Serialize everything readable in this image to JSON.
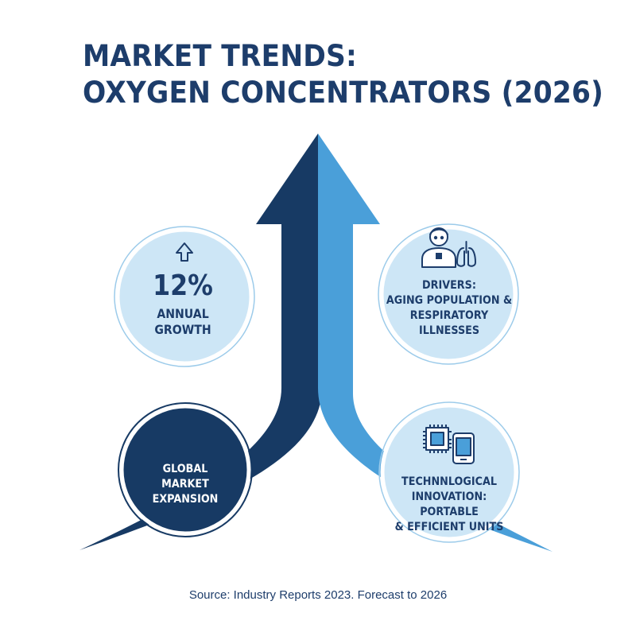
{
  "title": {
    "line1": "MARKET TRENDS:",
    "line2": "OXYGEN CONCENTRATORS (2026)"
  },
  "growth": {
    "value": "12%",
    "label_line1": "ANNUAL",
    "label_line2": "GROWTH",
    "icon": "arrow-up-outline-icon"
  },
  "drivers": {
    "line1": "DRIVERS:",
    "line2": "AGING POPULATION &",
    "line3": "RESPIRATORY ILLNESSES",
    "icon": "person-lungs-icon"
  },
  "expansion": {
    "line1": "GLOBAL",
    "line2": "MARKET EXPANSION"
  },
  "innovation": {
    "line1": "TECHNNLOGICAL",
    "line2": "INNOVATION: PORTABLE",
    "line3": "& EFFICIENT UNITS",
    "icon": "chip-device-icon"
  },
  "source": "Source: Industry Reports 2023. Forecast to 2026",
  "colors": {
    "navy": "#173a64",
    "mid_blue": "#4a9fd9",
    "light_bubble": "#cde6f6",
    "bubble_ring": "#8ec5e8",
    "title": "#1d3d6b"
  }
}
